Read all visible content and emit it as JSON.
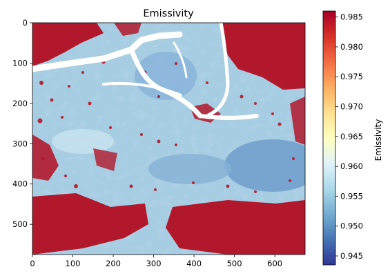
{
  "chart_data": {
    "type": "heatmap",
    "title": "Emissivity",
    "x": {
      "ticks": [
        0,
        100,
        200,
        300,
        400,
        500,
        600
      ],
      "range": [
        0,
        675
      ]
    },
    "y": {
      "ticks": [
        0,
        100,
        200,
        300,
        400,
        500
      ],
      "range": [
        0,
        575
      ],
      "inverted": true
    },
    "colorbar": {
      "label": "Emissivity",
      "ticks": [
        "0.945",
        "0.950",
        "0.955",
        "0.960",
        "0.965",
        "0.970",
        "0.975",
        "0.980",
        "0.985"
      ],
      "range": [
        0.9435,
        0.986
      ],
      "colormap": [
        "#313695",
        "#4575b4",
        "#74add1",
        "#abd9e9",
        "#e0f3f8",
        "#ffffbf",
        "#fee090",
        "#fdae61",
        "#f46d43",
        "#d73027",
        "#a50026"
      ]
    },
    "image_regions": [
      {
        "kind": "high",
        "value": 0.9855,
        "color": "#b2182b"
      },
      {
        "kind": "background",
        "value": 0.9565,
        "color": "#a7cde3"
      },
      {
        "kind": "low",
        "value": 0.947,
        "color": "#5b8fc4"
      },
      {
        "kind": "nodata",
        "color": "#ffffff"
      }
    ]
  }
}
